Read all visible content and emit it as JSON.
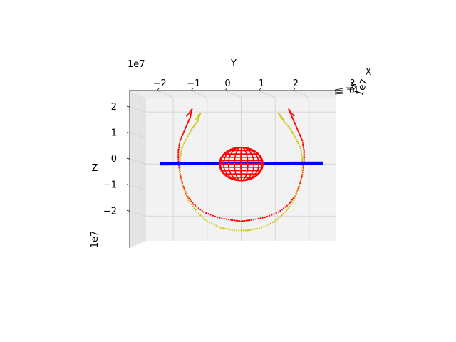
{
  "chart_data": {
    "type": "scatter",
    "projection": "3d",
    "view": "looking along the X axis (Y horizontal, Z vertical)",
    "title": "",
    "axes": {
      "x": {
        "label": "X",
        "scale_label": "1e7",
        "tick_labels": [
          "−2",
          "−1",
          "0",
          "1",
          "2"
        ]
      },
      "y": {
        "label": "Y",
        "scale_label": "1e7",
        "range": [
          -2.8,
          2.8
        ],
        "ticks": [
          -2,
          -1,
          0,
          1,
          2
        ],
        "tick_labels": [
          "−2",
          "−1",
          "0",
          "1",
          "2"
        ]
      },
      "z": {
        "label": "Z",
        "scale_label": "1e7",
        "range": [
          -2.95,
          2.55
        ],
        "ticks": [
          -2,
          -1,
          0,
          1,
          2
        ],
        "tick_labels": [
          "−2",
          "−1",
          "0",
          "1",
          "2"
        ]
      }
    },
    "grid": true,
    "legend": "none",
    "series": [
      {
        "marker": "dots",
        "color": "#ff0000",
        "description_points_y_z": [
          [
            -1.45,
            2.1
          ],
          [
            -1.5,
            1.8
          ],
          [
            -1.6,
            1.5
          ],
          [
            -1.7,
            1.2
          ],
          [
            -1.8,
            0.9
          ],
          [
            -1.85,
            0.5
          ],
          [
            -1.85,
            0.1
          ],
          [
            -1.8,
            -0.4
          ],
          [
            -1.72,
            -0.8
          ],
          [
            -1.6,
            -1.2
          ],
          [
            -1.4,
            -1.55
          ],
          [
            -1.1,
            -1.85
          ],
          [
            -0.7,
            -2.05
          ],
          [
            -0.3,
            -2.15
          ],
          [
            0.0,
            -2.2
          ],
          [
            0.3,
            -2.15
          ],
          [
            0.7,
            -2.05
          ],
          [
            1.1,
            -1.85
          ],
          [
            1.4,
            -1.55
          ],
          [
            1.6,
            -1.2
          ],
          [
            1.72,
            -0.8
          ],
          [
            1.8,
            -0.4
          ],
          [
            1.85,
            0.1
          ],
          [
            1.85,
            0.5
          ],
          [
            1.8,
            0.9
          ],
          [
            1.7,
            1.2
          ],
          [
            1.6,
            1.5
          ],
          [
            1.5,
            1.8
          ],
          [
            1.4,
            2.1
          ]
        ]
      },
      {
        "marker": "dots",
        "color": "#c8c800",
        "description_points_y_z": [
          [
            -1.2,
            1.95
          ],
          [
            -1.28,
            1.65
          ],
          [
            -1.45,
            1.35
          ],
          [
            -1.6,
            1.0
          ],
          [
            -1.75,
            0.6
          ],
          [
            -1.8,
            0.2
          ],
          [
            -1.8,
            -0.3
          ],
          [
            -1.7,
            -0.9
          ],
          [
            -1.55,
            -1.4
          ],
          [
            -1.3,
            -1.85
          ],
          [
            -1.0,
            -2.2
          ],
          [
            -0.6,
            -2.45
          ],
          [
            -0.2,
            -2.55
          ],
          [
            0.2,
            -2.55
          ],
          [
            0.6,
            -2.45
          ],
          [
            1.0,
            -2.2
          ],
          [
            1.3,
            -1.85
          ],
          [
            1.55,
            -1.4
          ],
          [
            1.7,
            -0.9
          ],
          [
            1.8,
            -0.3
          ],
          [
            1.8,
            0.2
          ],
          [
            1.75,
            0.6
          ],
          [
            1.6,
            1.0
          ],
          [
            1.45,
            1.35
          ],
          [
            1.25,
            1.65
          ],
          [
            1.1,
            1.95
          ]
        ]
      },
      {
        "marker": "line",
        "color": "#0000ff",
        "description_points_y_z": [
          [
            -2.4,
            0.0
          ],
          [
            2.4,
            0.0
          ]
        ]
      },
      {
        "marker": "wireframe-sphere",
        "color": "#ff0000",
        "center_y_z": [
          0.0,
          0.0
        ],
        "radius": 0.64
      }
    ]
  }
}
